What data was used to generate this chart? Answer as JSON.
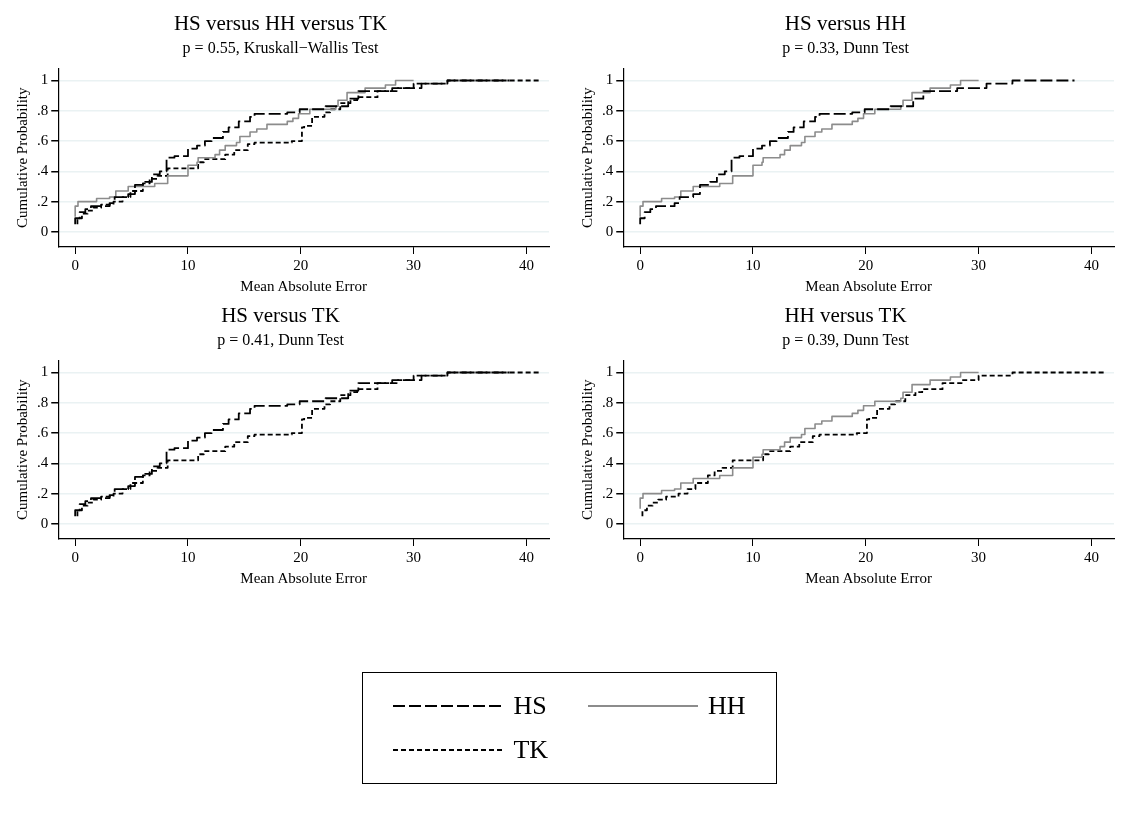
{
  "chart_data": [
    {
      "type": "step",
      "title": "HS versus HH versus TK",
      "subtitle": "p = 0.55, Kruskall−Wallis Test",
      "xlabel": "Mean Absolute Error",
      "ylabel": "Cumulative Probability",
      "xlim": [
        -1.5,
        42
      ],
      "ylim": [
        -0.1,
        1.08
      ],
      "xticks": [
        0,
        10,
        20,
        30,
        40
      ],
      "yticks": [
        {
          "value": 0,
          "label": "0"
        },
        {
          "value": 0.2,
          "label": ".2"
        },
        {
          "value": 0.4,
          "label": ".4"
        },
        {
          "value": 0.6,
          "label": ".6"
        },
        {
          "value": 0.8,
          "label": ".8"
        },
        {
          "value": 1,
          "label": "1"
        }
      ],
      "grid": "y",
      "legend": "bottom",
      "marker": "none",
      "series": [
        {
          "name": "HS",
          "color": "#000000",
          "line_style": "dashed",
          "x": [
            0,
            0.4,
            0.9,
            1.4,
            3.05,
            3.5,
            4.7,
            5.3,
            6.2,
            6.8,
            7.5,
            8.1,
            8.8,
            10,
            10.8,
            11.5,
            12.1,
            13.1,
            13.6,
            14.5,
            15.5,
            15.9,
            18.8,
            19.9,
            22.2,
            24.2,
            25.1,
            28.1,
            30.7,
            33,
            38.5
          ],
          "values": [
            0.05,
            0.09,
            0.13,
            0.15,
            0.17,
            0.19,
            0.23,
            0.25,
            0.31,
            0.33,
            0.38,
            0.4,
            0.49,
            0.5,
            0.55,
            0.57,
            0.6,
            0.62,
            0.66,
            0.69,
            0.73,
            0.76,
            0.78,
            0.79,
            0.81,
            0.83,
            0.88,
            0.93,
            0.95,
            0.98,
            1
          ]
        },
        {
          "name": "HH",
          "color": "#8c8c8c",
          "line_style": "solid",
          "x": [
            0,
            0.25,
            1.9,
            3.05,
            3.6,
            4.7,
            7.05,
            8.2,
            10,
            10.8,
            10.9,
            12.4,
            12.8,
            13.3,
            14.3,
            14.6,
            15.5,
            16.1,
            17,
            18.8,
            19.3,
            19.8,
            20.8,
            23.1,
            23.3,
            24.1,
            25.7,
            27.5,
            28.4,
            30
          ],
          "values": [
            0.1,
            0.17,
            0.2,
            0.22,
            0.23,
            0.27,
            0.3,
            0.32,
            0.37,
            0.44,
            0.46,
            0.49,
            0.51,
            0.54,
            0.57,
            0.59,
            0.63,
            0.66,
            0.68,
            0.71,
            0.73,
            0.75,
            0.78,
            0.81,
            0.83,
            0.87,
            0.92,
            0.95,
            0.97,
            1
          ]
        },
        {
          "name": "TK",
          "color": "#000000",
          "line_style": "dotted",
          "x": [
            0.2,
            0.6,
            1.1,
            1.6,
            2.3,
            3.4,
            4.2,
            4.9,
            6,
            6.6,
            7.3,
            8.2,
            10.9,
            11.4,
            13.3,
            14.1,
            15.3,
            15.9,
            19.2,
            20.1,
            20.3,
            21,
            22.1,
            22.6,
            23.5,
            24.4,
            25,
            26.8,
            28.5,
            30,
            33,
            41.2
          ],
          "values": [
            0.05,
            0.09,
            0.12,
            0.14,
            0.16,
            0.18,
            0.2,
            0.23,
            0.27,
            0.32,
            0.35,
            0.37,
            0.42,
            0.46,
            0.48,
            0.51,
            0.54,
            0.58,
            0.59,
            0.6,
            0.69,
            0.7,
            0.76,
            0.79,
            0.81,
            0.85,
            0.87,
            0.89,
            0.93,
            0.95,
            0.98,
            1
          ]
        }
      ]
    },
    {
      "type": "step",
      "title": "HS versus HH",
      "subtitle": "p = 0.33, Dunn Test",
      "xlabel": "Mean Absolute Error",
      "ylabel": "Cumulative Probability",
      "xlim": [
        -1.5,
        42
      ],
      "ylim": [
        -0.1,
        1.08
      ],
      "xticks": [
        0,
        10,
        20,
        30,
        40
      ],
      "yticks": [
        {
          "value": 0,
          "label": "0"
        },
        {
          "value": 0.2,
          "label": ".2"
        },
        {
          "value": 0.4,
          "label": ".4"
        },
        {
          "value": 0.6,
          "label": ".6"
        },
        {
          "value": 0.8,
          "label": ".8"
        },
        {
          "value": 1,
          "label": "1"
        }
      ],
      "grid": "y",
      "marker": "none",
      "series": [
        {
          "color": "#000000",
          "line_style": "dashed",
          "x": [
            0,
            0.4,
            0.9,
            1.4,
            3.05,
            3.5,
            4.7,
            5.3,
            6.2,
            6.8,
            7.5,
            8.1,
            8.8,
            10,
            10.8,
            11.5,
            12.1,
            13.1,
            13.6,
            14.5,
            15.5,
            15.9,
            18.8,
            19.9,
            22.2,
            24.2,
            25.1,
            28.1,
            30.7,
            33,
            38.5
          ],
          "values": [
            0.05,
            0.09,
            0.13,
            0.15,
            0.17,
            0.19,
            0.23,
            0.25,
            0.31,
            0.33,
            0.38,
            0.4,
            0.49,
            0.5,
            0.55,
            0.57,
            0.6,
            0.62,
            0.66,
            0.69,
            0.73,
            0.76,
            0.78,
            0.79,
            0.81,
            0.83,
            0.88,
            0.93,
            0.95,
            0.98,
            1
          ]
        },
        {
          "color": "#8c8c8c",
          "line_style": "solid",
          "x": [
            0,
            0.25,
            1.9,
            3.05,
            3.6,
            4.7,
            7.05,
            8.2,
            10,
            10.8,
            10.9,
            12.4,
            12.8,
            13.3,
            14.3,
            14.6,
            15.5,
            16.1,
            17,
            18.8,
            19.3,
            19.8,
            20.8,
            23.1,
            23.3,
            24.1,
            25.7,
            27.5,
            28.4,
            30
          ],
          "values": [
            0.1,
            0.17,
            0.2,
            0.22,
            0.23,
            0.27,
            0.3,
            0.32,
            0.37,
            0.44,
            0.46,
            0.49,
            0.51,
            0.54,
            0.57,
            0.59,
            0.63,
            0.66,
            0.68,
            0.71,
            0.73,
            0.75,
            0.78,
            0.81,
            0.83,
            0.87,
            0.92,
            0.95,
            0.97,
            1
          ]
        }
      ]
    },
    {
      "type": "step",
      "title": "HS versus TK",
      "subtitle": "p = 0.41, Dunn Test",
      "xlabel": "Mean Absolute Error",
      "ylabel": "Cumulative Probability",
      "xlim": [
        -1.5,
        42
      ],
      "ylim": [
        -0.1,
        1.08
      ],
      "xticks": [
        0,
        10,
        20,
        30,
        40
      ],
      "yticks": [
        {
          "value": 0,
          "label": "0"
        },
        {
          "value": 0.2,
          "label": ".2"
        },
        {
          "value": 0.4,
          "label": ".4"
        },
        {
          "value": 0.6,
          "label": ".6"
        },
        {
          "value": 0.8,
          "label": ".8"
        },
        {
          "value": 1,
          "label": "1"
        }
      ],
      "grid": "y",
      "marker": "none",
      "series": [
        {
          "color": "#000000",
          "line_style": "dashed",
          "x": [
            0,
            0.4,
            0.9,
            1.4,
            3.05,
            3.5,
            4.7,
            5.3,
            6.2,
            6.8,
            7.5,
            8.1,
            8.8,
            10,
            10.8,
            11.5,
            12.1,
            13.1,
            13.6,
            14.5,
            15.5,
            15.9,
            18.8,
            19.9,
            22.2,
            24.2,
            25.1,
            28.1,
            30.7,
            33,
            38.5
          ],
          "values": [
            0.05,
            0.09,
            0.13,
            0.15,
            0.17,
            0.19,
            0.23,
            0.25,
            0.31,
            0.33,
            0.38,
            0.4,
            0.49,
            0.5,
            0.55,
            0.57,
            0.6,
            0.62,
            0.66,
            0.69,
            0.73,
            0.76,
            0.78,
            0.79,
            0.81,
            0.83,
            0.88,
            0.93,
            0.95,
            0.98,
            1
          ]
        },
        {
          "color": "#000000",
          "line_style": "dotted",
          "x": [
            0.2,
            0.6,
            1.1,
            1.6,
            2.3,
            3.4,
            4.2,
            4.9,
            6,
            6.6,
            7.3,
            8.2,
            10.9,
            11.4,
            13.3,
            14.1,
            15.3,
            15.9,
            19.2,
            20.1,
            20.3,
            21,
            22.1,
            22.6,
            23.5,
            24.4,
            25,
            26.8,
            28.5,
            30,
            33,
            41.2
          ],
          "values": [
            0.05,
            0.09,
            0.12,
            0.14,
            0.16,
            0.18,
            0.2,
            0.23,
            0.27,
            0.32,
            0.35,
            0.37,
            0.42,
            0.46,
            0.48,
            0.51,
            0.54,
            0.58,
            0.59,
            0.6,
            0.69,
            0.7,
            0.76,
            0.79,
            0.81,
            0.85,
            0.87,
            0.89,
            0.93,
            0.95,
            0.98,
            1
          ]
        }
      ]
    },
    {
      "type": "step",
      "title": "HH versus TK",
      "subtitle": "p = 0.39, Dunn Test",
      "xlabel": "Mean Absolute Error",
      "ylabel": "Cumulative Probability",
      "xlim": [
        -1.5,
        42
      ],
      "ylim": [
        -0.1,
        1.08
      ],
      "xticks": [
        0,
        10,
        20,
        30,
        40
      ],
      "yticks": [
        {
          "value": 0,
          "label": "0"
        },
        {
          "value": 0.2,
          "label": ".2"
        },
        {
          "value": 0.4,
          "label": ".4"
        },
        {
          "value": 0.6,
          "label": ".6"
        },
        {
          "value": 0.8,
          "label": ".8"
        },
        {
          "value": 1,
          "label": "1"
        }
      ],
      "grid": "y",
      "marker": "none",
      "series": [
        {
          "color": "#8c8c8c",
          "line_style": "solid",
          "x": [
            0,
            0.25,
            1.9,
            3.05,
            3.6,
            4.7,
            7.05,
            8.2,
            10,
            10.8,
            10.9,
            12.4,
            12.8,
            13.3,
            14.3,
            14.6,
            15.5,
            16.1,
            17,
            18.8,
            19.3,
            19.8,
            20.8,
            23.1,
            23.3,
            24.1,
            25.7,
            27.5,
            28.4,
            30
          ],
          "values": [
            0.1,
            0.17,
            0.2,
            0.22,
            0.23,
            0.27,
            0.3,
            0.32,
            0.37,
            0.44,
            0.46,
            0.49,
            0.51,
            0.54,
            0.57,
            0.59,
            0.63,
            0.66,
            0.68,
            0.71,
            0.73,
            0.75,
            0.78,
            0.81,
            0.83,
            0.87,
            0.92,
            0.95,
            0.97,
            1
          ]
        },
        {
          "color": "#000000",
          "line_style": "dotted",
          "x": [
            0.2,
            0.6,
            1.1,
            1.6,
            2.3,
            3.4,
            4.2,
            4.9,
            6,
            6.6,
            7.3,
            8.2,
            10.9,
            11.4,
            13.3,
            14.1,
            15.3,
            15.9,
            19.2,
            20.1,
            20.3,
            21,
            22.1,
            22.6,
            23.5,
            24.4,
            25,
            26.8,
            28.5,
            30,
            33,
            41.2
          ],
          "values": [
            0.05,
            0.09,
            0.12,
            0.14,
            0.16,
            0.18,
            0.2,
            0.23,
            0.27,
            0.32,
            0.35,
            0.37,
            0.42,
            0.46,
            0.48,
            0.51,
            0.54,
            0.58,
            0.59,
            0.6,
            0.69,
            0.7,
            0.76,
            0.79,
            0.81,
            0.85,
            0.87,
            0.89,
            0.93,
            0.95,
            0.98,
            1
          ]
        }
      ]
    }
  ]
}
